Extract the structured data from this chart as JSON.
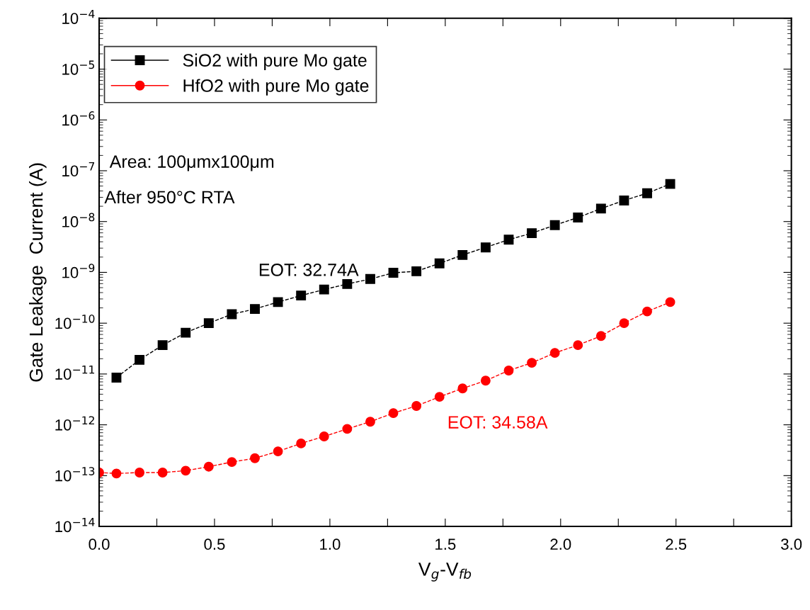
{
  "chart_data": {
    "type": "line",
    "xlabel": "V$_{g}$-V$_{fb}$",
    "ylabel": "Gate Leakage  Current (A)",
    "log": "y",
    "xlim": [
      0,
      3.0
    ],
    "ylim": [
      1e-14,
      0.0001
    ],
    "xticks": [
      {
        "value": 0,
        "label": "0.0"
      },
      {
        "value": 0.25,
        "label": null
      },
      {
        "value": 0.5,
        "label": "0.5"
      },
      {
        "value": 0.75,
        "label": null
      },
      {
        "value": 1.0,
        "label": "1.0"
      },
      {
        "value": 1.25,
        "label": null
      },
      {
        "value": 1.5,
        "label": "1.5"
      },
      {
        "value": 1.75,
        "label": null
      },
      {
        "value": 2.0,
        "label": "2.0"
      },
      {
        "value": 2.25,
        "label": null
      },
      {
        "value": 2.5,
        "label": "2.5"
      },
      {
        "value": 2.75,
        "label": null
      },
      {
        "value": 3.0,
        "label": "3.0"
      }
    ],
    "yticks": [
      {
        "value": 1e-14,
        "label": "10$^{−14}$"
      },
      {
        "value": 1e-13,
        "label": "10$^{−13}$"
      },
      {
        "value": 1e-12,
        "label": "10$^{−12}$"
      },
      {
        "value": 1e-11,
        "label": "10$^{−11}$"
      },
      {
        "value": 1e-10,
        "label": "10$^{−10}$"
      },
      {
        "value": 1e-09,
        "label": "10$^{−9}$"
      },
      {
        "value": 1e-08,
        "label": "10$^{−8}$"
      },
      {
        "value": 1e-07,
        "label": "10$^{−7}$"
      },
      {
        "value": 1e-06,
        "label": "10$^{−6}$"
      },
      {
        "value": 1e-05,
        "label": "10$^{−5}$"
      },
      {
        "value": 0.0001,
        "label": "10$^{−4}$"
      }
    ],
    "grid": false,
    "legend": "top left",
    "line_style": "dashed",
    "series": [
      {
        "name": "SiO2 with pure Mo gate",
        "color": "#000000",
        "marker": "square",
        "x": [
          0.075,
          0.175,
          0.275,
          0.375,
          0.475,
          0.575,
          0.675,
          0.775,
          0.875,
          0.975,
          1.075,
          1.175,
          1.275,
          1.375,
          1.475,
          1.575,
          1.675,
          1.775,
          1.875,
          1.975,
          2.075,
          2.175,
          2.275,
          2.375,
          2.475
        ],
        "values": [
          8.5e-12,
          1.9e-11,
          3.7e-11,
          6.5e-11,
          1e-10,
          1.5e-10,
          1.9e-10,
          2.6e-10,
          3.5e-10,
          4.6e-10,
          5.9e-10,
          7.4e-10,
          9.8e-10,
          1.05e-09,
          1.5e-09,
          2.2e-09,
          3.1e-09,
          4.4e-09,
          5.9e-09,
          8.5e-09,
          1.2e-08,
          1.8e-08,
          2.6e-08,
          3.6e-08,
          5.5e-08
        ]
      },
      {
        "name": "HfO2 with pure Mo gate",
        "color": "#ff0000",
        "marker": "circle",
        "x": [
          0.0,
          0.075,
          0.175,
          0.275,
          0.375,
          0.475,
          0.575,
          0.675,
          0.775,
          0.875,
          0.975,
          1.075,
          1.175,
          1.275,
          1.375,
          1.475,
          1.575,
          1.675,
          1.775,
          1.875,
          1.975,
          2.075,
          2.175,
          2.275,
          2.375,
          2.475
        ],
        "values": [
          1.15e-13,
          1.1e-13,
          1.15e-13,
          1.15e-13,
          1.25e-13,
          1.5e-13,
          1.85e-13,
          2.2e-13,
          3e-13,
          4.3e-13,
          5.9e-13,
          8.3e-13,
          1.15e-12,
          1.7e-12,
          2.35e-12,
          3.55e-12,
          5.2e-12,
          7.4e-12,
          1.17e-11,
          1.66e-11,
          2.6e-11,
          3.7e-11,
          5.6e-11,
          1e-10,
          1.7e-10,
          2.6e-10
        ]
      }
    ],
    "annotations": [
      "Area: 100μmx100μm",
      "After 950°C RTA",
      "EOT: 32.74A",
      "EOT: 34.58A"
    ]
  }
}
